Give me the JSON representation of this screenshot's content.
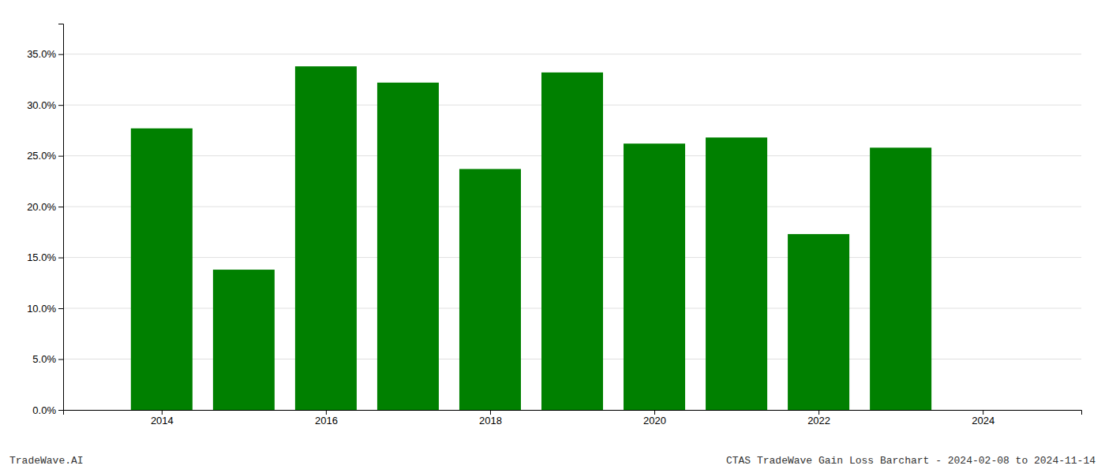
{
  "chart_data": {
    "type": "bar",
    "x": [
      2014,
      2015,
      2016,
      2017,
      2018,
      2019,
      2020,
      2021,
      2022,
      2023
    ],
    "values": [
      0.277,
      0.138,
      0.338,
      0.322,
      0.237,
      0.332,
      0.262,
      0.268,
      0.173,
      0.258
    ],
    "color": "#008000",
    "xlim": [
      2012.8,
      2025.2
    ],
    "xticks": [
      2014,
      2016,
      2018,
      2020,
      2022,
      2024
    ],
    "ylim": [
      0,
      0.38
    ],
    "yticks": [
      {
        "value": 0.0,
        "label": "0.0%"
      },
      {
        "value": 0.05,
        "label": "5.0%"
      },
      {
        "value": 0.1,
        "label": "10.0%"
      },
      {
        "value": 0.15,
        "label": "15.0%"
      },
      {
        "value": 0.2,
        "label": "20.0%"
      },
      {
        "value": 0.25,
        "label": "25.0%"
      },
      {
        "value": 0.3,
        "label": "30.0%"
      },
      {
        "value": 0.35,
        "label": "35.0%"
      }
    ],
    "grid": true,
    "annotations": [
      "TradeWave.AI",
      "CTAS TradeWave Gain Loss Barchart - 2024-02-08 to 2024-11-14"
    ]
  }
}
